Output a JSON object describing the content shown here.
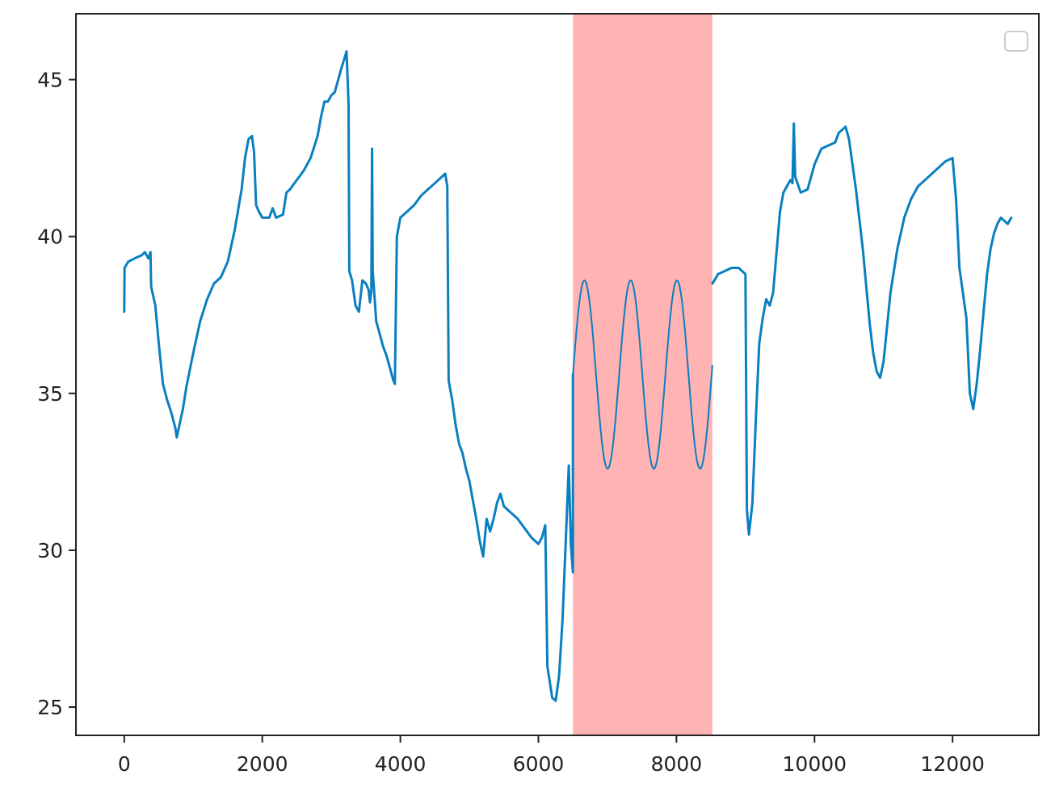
{
  "chart_data": {
    "type": "line",
    "title": "",
    "xlabel": "",
    "ylabel": "",
    "xlim": [
      -700,
      13250
    ],
    "ylim": [
      24.1,
      47.1
    ],
    "x_ticks": [
      0,
      2000,
      4000,
      6000,
      8000,
      10000,
      12000
    ],
    "y_ticks": [
      25,
      30,
      35,
      40,
      45
    ],
    "x_tick_labels": [
      "0",
      "2000",
      "4000",
      "6000",
      "8000",
      "10000",
      "12000"
    ],
    "y_tick_labels": [
      "25",
      "30",
      "35",
      "40",
      "45"
    ],
    "grid": false,
    "legend": {
      "placement": "top-right",
      "entries": []
    },
    "highlight_span": {
      "x_start": 6500,
      "x_end": 8520,
      "color": "#ffb3b3"
    },
    "series": [
      {
        "color": "#0a7fc0",
        "points": [
          [
            0,
            37.6
          ],
          [
            5,
            39.0
          ],
          [
            60,
            39.2
          ],
          [
            150,
            39.3
          ],
          [
            250,
            39.4
          ],
          [
            300,
            39.5
          ],
          [
            350,
            39.3
          ],
          [
            380,
            39.5
          ],
          [
            390,
            38.4
          ],
          [
            450,
            37.8
          ],
          [
            500,
            36.6
          ],
          [
            560,
            35.3
          ],
          [
            620,
            34.8
          ],
          [
            680,
            34.4
          ],
          [
            740,
            33.9
          ],
          [
            760,
            33.6
          ],
          [
            800,
            34.0
          ],
          [
            850,
            34.5
          ],
          [
            900,
            35.2
          ],
          [
            1000,
            36.3
          ],
          [
            1100,
            37.3
          ],
          [
            1200,
            38.0
          ],
          [
            1300,
            38.5
          ],
          [
            1400,
            38.7
          ],
          [
            1500,
            39.2
          ],
          [
            1600,
            40.2
          ],
          [
            1700,
            41.5
          ],
          [
            1750,
            42.5
          ],
          [
            1800,
            43.1
          ],
          [
            1850,
            43.2
          ],
          [
            1880,
            42.7
          ],
          [
            1910,
            41.0
          ],
          [
            1950,
            40.8
          ],
          [
            2000,
            40.6
          ],
          [
            2100,
            40.6
          ],
          [
            2150,
            40.9
          ],
          [
            2200,
            40.6
          ],
          [
            2300,
            40.7
          ],
          [
            2350,
            41.4
          ],
          [
            2400,
            41.5
          ],
          [
            2500,
            41.8
          ],
          [
            2600,
            42.1
          ],
          [
            2700,
            42.5
          ],
          [
            2800,
            43.2
          ],
          [
            2850,
            43.8
          ],
          [
            2900,
            44.3
          ],
          [
            2950,
            44.3
          ],
          [
            3000,
            44.5
          ],
          [
            3050,
            44.6
          ],
          [
            3100,
            45.0
          ],
          [
            3150,
            45.4
          ],
          [
            3180,
            45.6
          ],
          [
            3220,
            45.9
          ],
          [
            3250,
            44.2
          ],
          [
            3260,
            38.9
          ],
          [
            3300,
            38.6
          ],
          [
            3350,
            37.8
          ],
          [
            3400,
            37.6
          ],
          [
            3450,
            38.6
          ],
          [
            3500,
            38.5
          ],
          [
            3540,
            38.3
          ],
          [
            3560,
            37.9
          ],
          [
            3580,
            38.3
          ],
          [
            3590,
            42.8
          ],
          [
            3600,
            38.9
          ],
          [
            3650,
            37.3
          ],
          [
            3700,
            36.9
          ],
          [
            3750,
            36.5
          ],
          [
            3800,
            36.2
          ],
          [
            3850,
            35.8
          ],
          [
            3900,
            35.4
          ],
          [
            3920,
            35.3
          ],
          [
            3950,
            40.0
          ],
          [
            4000,
            40.6
          ],
          [
            4100,
            40.8
          ],
          [
            4200,
            41.0
          ],
          [
            4300,
            41.3
          ],
          [
            4400,
            41.5
          ],
          [
            4500,
            41.7
          ],
          [
            4600,
            41.9
          ],
          [
            4650,
            42.0
          ],
          [
            4680,
            41.6
          ],
          [
            4700,
            35.4
          ],
          [
            4750,
            34.8
          ],
          [
            4800,
            34.0
          ],
          [
            4850,
            33.4
          ],
          [
            4900,
            33.1
          ],
          [
            4950,
            32.6
          ],
          [
            5000,
            32.2
          ],
          [
            5050,
            31.6
          ],
          [
            5100,
            31.0
          ],
          [
            5150,
            30.3
          ],
          [
            5200,
            29.8
          ],
          [
            5250,
            31.0
          ],
          [
            5300,
            30.6
          ],
          [
            5350,
            31.0
          ],
          [
            5400,
            31.5
          ],
          [
            5450,
            31.8
          ],
          [
            5500,
            31.4
          ],
          [
            5600,
            31.2
          ],
          [
            5700,
            31.0
          ],
          [
            5800,
            30.7
          ],
          [
            5900,
            30.4
          ],
          [
            6000,
            30.2
          ],
          [
            6050,
            30.4
          ],
          [
            6100,
            30.8
          ],
          [
            6130,
            26.3
          ],
          [
            6200,
            25.3
          ],
          [
            6250,
            25.2
          ],
          [
            6300,
            26.0
          ],
          [
            6350,
            27.8
          ],
          [
            6400,
            30.5
          ],
          [
            6440,
            32.7
          ],
          [
            6470,
            30.2
          ],
          [
            6500,
            29.3
          ],
          [
            6500,
            35.6
          ]
        ]
      },
      {
        "color": "#0a7fc0",
        "points": [
          [
            8520,
            38.5
          ],
          [
            8550,
            38.6
          ],
          [
            8600,
            38.8
          ],
          [
            8700,
            38.9
          ],
          [
            8800,
            39.0
          ],
          [
            8900,
            39.0
          ],
          [
            8950,
            38.9
          ],
          [
            9000,
            38.8
          ],
          [
            9020,
            31.3
          ],
          [
            9050,
            30.5
          ],
          [
            9100,
            31.5
          ],
          [
            9150,
            34.2
          ],
          [
            9200,
            36.6
          ],
          [
            9250,
            37.4
          ],
          [
            9300,
            38.0
          ],
          [
            9350,
            37.8
          ],
          [
            9400,
            38.2
          ],
          [
            9450,
            39.5
          ],
          [
            9500,
            40.8
          ],
          [
            9550,
            41.4
          ],
          [
            9600,
            41.6
          ],
          [
            9650,
            41.8
          ],
          [
            9680,
            41.7
          ],
          [
            9700,
            43.6
          ],
          [
            9720,
            41.9
          ],
          [
            9800,
            41.4
          ],
          [
            9900,
            41.5
          ],
          [
            10000,
            42.3
          ],
          [
            10100,
            42.8
          ],
          [
            10200,
            42.9
          ],
          [
            10300,
            43.0
          ],
          [
            10350,
            43.3
          ],
          [
            10400,
            43.4
          ],
          [
            10450,
            43.5
          ],
          [
            10500,
            43.1
          ],
          [
            10600,
            41.5
          ],
          [
            10700,
            39.6
          ],
          [
            10800,
            37.2
          ],
          [
            10850,
            36.3
          ],
          [
            10900,
            35.7
          ],
          [
            10950,
            35.5
          ],
          [
            11000,
            36.0
          ],
          [
            11100,
            38.2
          ],
          [
            11200,
            39.6
          ],
          [
            11300,
            40.6
          ],
          [
            11400,
            41.2
          ],
          [
            11500,
            41.6
          ],
          [
            11600,
            41.8
          ],
          [
            11700,
            42.0
          ],
          [
            11800,
            42.2
          ],
          [
            11900,
            42.4
          ],
          [
            12000,
            42.5
          ],
          [
            12050,
            41.2
          ],
          [
            12100,
            39.0
          ],
          [
            12150,
            38.2
          ],
          [
            12200,
            37.4
          ],
          [
            12250,
            35.0
          ],
          [
            12300,
            34.5
          ],
          [
            12350,
            35.3
          ],
          [
            12400,
            36.4
          ],
          [
            12450,
            37.6
          ],
          [
            12500,
            38.8
          ],
          [
            12550,
            39.6
          ],
          [
            12600,
            40.1
          ],
          [
            12650,
            40.4
          ],
          [
            12700,
            40.6
          ],
          [
            12750,
            40.5
          ],
          [
            12800,
            40.4
          ],
          [
            12850,
            40.6
          ]
        ]
      },
      {
        "color": "#0a7fc0",
        "sine": {
          "x_start": 6500,
          "x_end": 8520,
          "center": 35.6,
          "amplitude": 3.0,
          "period": 670,
          "phase_start_x": 6500
        }
      }
    ]
  }
}
